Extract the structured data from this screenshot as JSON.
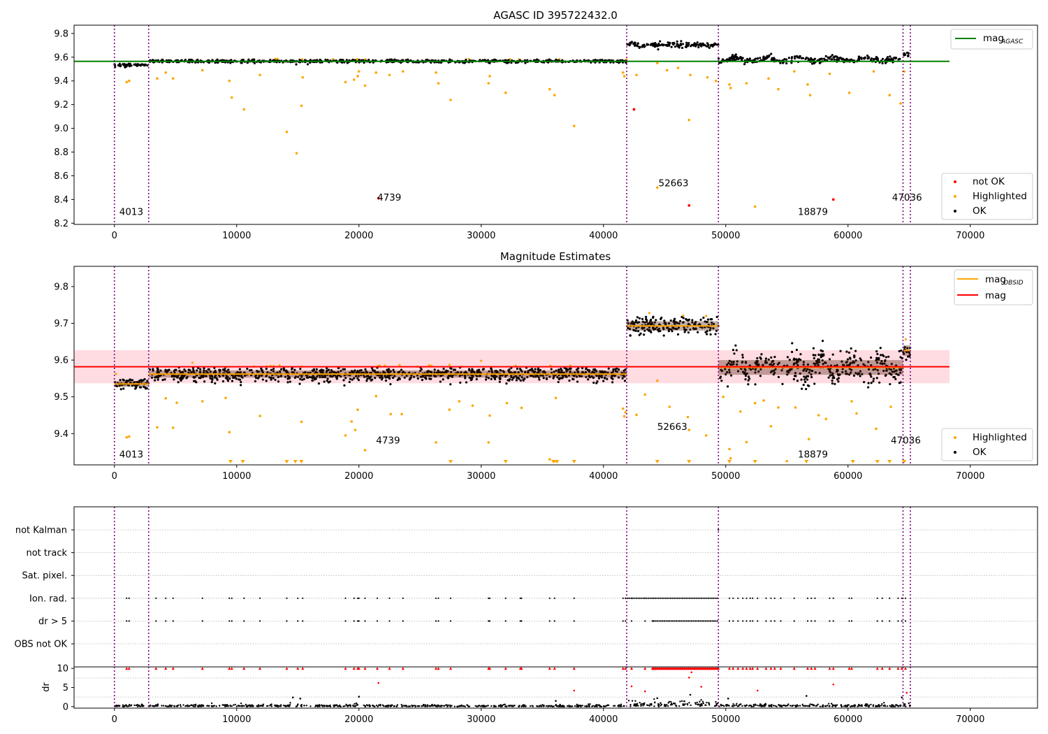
{
  "figure_title": "AGASC ID 395722432.0",
  "colors": {
    "ok": "#000000",
    "highlighted": "#ffa500",
    "not_ok": "#ff0000",
    "mag_agasc": "#008000",
    "mag_obsid": "#ffa500",
    "mag": "#ff0000",
    "mag_band": "#ffc0cb",
    "obs_line": "#800080",
    "grid": "#b0b0b0",
    "brown": "#4a1c0a"
  },
  "chart_data": [
    {
      "name": "agasc-panel",
      "type": "scatter",
      "title": "AGASC ID 395722432.0",
      "xlim": [
        -3300,
        75500
      ],
      "ylim": [
        8.19,
        9.87
      ],
      "x_ticks": [
        0,
        10000,
        20000,
        30000,
        40000,
        50000,
        60000,
        70000
      ],
      "y_ticks": [
        8.2,
        8.4,
        8.6,
        8.8,
        9.0,
        9.2,
        9.4,
        9.6,
        9.8
      ],
      "obs_boundaries": [
        0,
        2800,
        41900,
        49400,
        64500,
        65100
      ],
      "segment_means": [
        9.535,
        9.567,
        9.567,
        9.704,
        9.58,
        9.625
      ],
      "segment_spread": [
        0.012,
        0.012,
        0.012,
        0.018,
        0.022,
        0.02
      ],
      "mag_agasc": {
        "value": 9.565,
        "x_range": [
          -3300,
          68300
        ]
      },
      "highlighted_points": [
        [
          1000,
          9.39
        ],
        [
          1200,
          9.4
        ],
        [
          3500,
          9.42
        ],
        [
          4200,
          9.47
        ],
        [
          4800,
          9.42
        ],
        [
          7200,
          9.49
        ],
        [
          9400,
          9.4
        ],
        [
          9600,
          9.26
        ],
        [
          10600,
          9.16
        ],
        [
          11900,
          9.45
        ],
        [
          14100,
          8.97
        ],
        [
          14900,
          8.79
        ],
        [
          15300,
          9.19
        ],
        [
          15400,
          9.43
        ],
        [
          18900,
          9.39
        ],
        [
          19600,
          9.41
        ],
        [
          19900,
          9.44
        ],
        [
          20000,
          9.48
        ],
        [
          20500,
          9.36
        ],
        [
          21400,
          9.47
        ],
        [
          22500,
          9.45
        ],
        [
          23600,
          9.48
        ],
        [
          26300,
          9.47
        ],
        [
          26500,
          9.38
        ],
        [
          27500,
          9.24
        ],
        [
          30600,
          9.38
        ],
        [
          30700,
          9.44
        ],
        [
          32000,
          9.3
        ],
        [
          35600,
          9.33
        ],
        [
          36000,
          9.28
        ],
        [
          37600,
          9.02
        ],
        [
          41600,
          9.47
        ],
        [
          41700,
          9.44
        ],
        [
          42700,
          9.45
        ],
        [
          44400,
          9.55
        ],
        [
          44400,
          8.5
        ],
        [
          45200,
          9.49
        ],
        [
          46100,
          9.51
        ],
        [
          47000,
          9.07
        ],
        [
          47100,
          9.45
        ],
        [
          48500,
          9.43
        ],
        [
          49200,
          9.4
        ],
        [
          50300,
          9.37
        ],
        [
          50400,
          9.34
        ],
        [
          51700,
          9.38
        ],
        [
          52400,
          8.34
        ],
        [
          53500,
          9.42
        ],
        [
          54300,
          9.33
        ],
        [
          55600,
          9.48
        ],
        [
          56700,
          9.37
        ],
        [
          56900,
          9.28
        ],
        [
          58500,
          9.46
        ],
        [
          60100,
          9.3
        ],
        [
          62100,
          9.48
        ],
        [
          63400,
          9.28
        ],
        [
          64300,
          9.21
        ],
        [
          64600,
          9.48
        ]
      ],
      "not_ok_points": [
        [
          21600,
          8.41
        ],
        [
          42500,
          9.16
        ],
        [
          47000,
          8.35
        ],
        [
          58800,
          8.4
        ]
      ],
      "obsid_labels": [
        {
          "text": "4013",
          "x": 400,
          "y": 8.27
        },
        {
          "text": "4739",
          "x": 21500,
          "y": 8.39
        },
        {
          "text": "52663",
          "x": 44500,
          "y": 8.51
        },
        {
          "text": "18879",
          "x": 55900,
          "y": 8.27
        },
        {
          "text": "47036",
          "x": 63600,
          "y": 8.39
        }
      ],
      "legend": {
        "position": "top-right",
        "label": "mag",
        "subscript": "AGASC"
      },
      "legend2": {
        "position": "lower-right",
        "entries": [
          "not OK",
          "Highlighted",
          "OK"
        ]
      }
    },
    {
      "name": "estimates-panel",
      "type": "scatter",
      "title": "Magnitude Estimates",
      "xlim": [
        -3300,
        75500
      ],
      "ylim": [
        9.315,
        9.855
      ],
      "x_ticks": [
        0,
        10000,
        20000,
        30000,
        40000,
        50000,
        60000,
        70000
      ],
      "y_ticks": [
        9.4,
        9.5,
        9.6,
        9.7,
        9.8
      ],
      "obs_boundaries": [
        0,
        2800,
        41900,
        49400,
        64500,
        65100
      ],
      "segment_means": [
        9.535,
        9.562,
        9.562,
        9.693,
        9.58,
        9.626
      ],
      "segment_spread": [
        0.01,
        0.012,
        0.012,
        0.016,
        0.025,
        0.018
      ],
      "mag": {
        "value": 9.582,
        "band": [
          9.537,
          9.627
        ],
        "x_range": [
          -3300,
          68300
        ]
      },
      "highlighted_points": [
        [
          1000,
          9.39
        ],
        [
          1200,
          9.392
        ],
        [
          3500,
          9.417
        ],
        [
          4200,
          9.496
        ],
        [
          4800,
          9.416
        ],
        [
          5100,
          9.484
        ],
        [
          7200,
          9.488
        ],
        [
          9100,
          9.497
        ],
        [
          9400,
          9.404
        ],
        [
          11900,
          9.448
        ],
        [
          15300,
          9.432
        ],
        [
          18900,
          9.395
        ],
        [
          19400,
          9.433
        ],
        [
          19700,
          9.41
        ],
        [
          19900,
          9.465
        ],
        [
          20500,
          9.355
        ],
        [
          21400,
          9.502
        ],
        [
          22600,
          9.453
        ],
        [
          23500,
          9.453
        ],
        [
          26300,
          9.376
        ],
        [
          27400,
          9.465
        ],
        [
          28200,
          9.488
        ],
        [
          29300,
          9.476
        ],
        [
          30600,
          9.376
        ],
        [
          30700,
          9.449
        ],
        [
          32100,
          9.483
        ],
        [
          33300,
          9.47
        ],
        [
          35600,
          9.33
        ],
        [
          36000,
          9.325
        ],
        [
          36100,
          9.497
        ],
        [
          41600,
          9.468
        ],
        [
          41700,
          9.447
        ],
        [
          41800,
          9.458
        ],
        [
          42700,
          9.451
        ],
        [
          43400,
          9.506
        ],
        [
          44400,
          9.544
        ],
        [
          45400,
          9.473
        ],
        [
          46900,
          9.445
        ],
        [
          47000,
          9.41
        ],
        [
          48400,
          9.395
        ],
        [
          49800,
          9.5
        ],
        [
          50300,
          9.358
        ],
        [
          50400,
          9.333
        ],
        [
          51200,
          9.46
        ],
        [
          51700,
          9.377
        ],
        [
          52400,
          9.483
        ],
        [
          53100,
          9.49
        ],
        [
          53700,
          9.42
        ],
        [
          54300,
          9.471
        ],
        [
          55000,
          9.325
        ],
        [
          55700,
          9.471
        ],
        [
          56800,
          9.385
        ],
        [
          57600,
          9.45
        ],
        [
          58200,
          9.44
        ],
        [
          60300,
          9.488
        ],
        [
          60700,
          9.455
        ],
        [
          62300,
          9.413
        ],
        [
          63500,
          9.473
        ]
      ],
      "down_markers": [
        9500,
        10500,
        14100,
        14800,
        15300,
        27500,
        32000,
        35900,
        36200,
        37600,
        44400,
        47000,
        50300,
        52400,
        56600,
        60400,
        62400,
        63400,
        64600
      ],
      "obsid_labels": [
        {
          "text": "4013",
          "x": 400,
          "y": 9.335
        },
        {
          "text": "4739",
          "x": 21400,
          "y": 9.373
        },
        {
          "text": "52663",
          "x": 44400,
          "y": 9.41
        },
        {
          "text": "18879",
          "x": 55900,
          "y": 9.335
        },
        {
          "text": "47036",
          "x": 63500,
          "y": 9.373
        }
      ],
      "legend": {
        "position": "top-right",
        "entries": [
          {
            "label": "mag",
            "subscript": "OBSID"
          },
          {
            "label": "mag"
          }
        ]
      },
      "legend2": {
        "position": "lower-right",
        "entries": [
          "Highlighted",
          "OK"
        ]
      }
    },
    {
      "name": "flags-panel",
      "type": "scatter",
      "xlim": [
        -3300,
        75500
      ],
      "categories": [
        "not Kalman",
        "not track",
        "Sat. pixel.",
        "Ion. rad.",
        "dr > 5",
        "OBS not OK"
      ],
      "obs_boundaries": [
        0,
        2800,
        41900,
        49400,
        64500,
        65100
      ],
      "flagged_x": [
        1000,
        1200,
        3400,
        4200,
        4800,
        7200,
        9400,
        9600,
        10600,
        11900,
        14100,
        15000,
        15400,
        18900,
        19600,
        19900,
        20000,
        20500,
        21500,
        22500,
        23600,
        26300,
        26500,
        27500,
        30600,
        30700,
        32000,
        33200,
        33300,
        35600,
        36000,
        37600,
        41600,
        41800,
        42300,
        43400,
        44100,
        50300,
        50600,
        51000,
        51400,
        51700,
        52000,
        52200,
        52600,
        53300,
        53700,
        54000,
        54500,
        55600,
        56700,
        57000,
        57300,
        58500,
        58800,
        60100,
        60300,
        62400,
        62800,
        63400,
        64100,
        64400,
        64700
      ],
      "ion_rad_dense": [
        42000,
        49400
      ],
      "dr_dense": [
        44000,
        49400
      ],
      "not_kalman_x": [
        49400
      ]
    },
    {
      "name": "dr-panel",
      "type": "scatter",
      "ylabel": "dr",
      "xlim": [
        -3300,
        75500
      ],
      "ylim": [
        -0.4,
        10.4
      ],
      "x_ticks": [
        0,
        10000,
        20000,
        30000,
        40000,
        50000,
        60000,
        70000
      ],
      "y_ticks": [
        0,
        5,
        10
      ],
      "obs_boundaries": [
        0,
        2800,
        41900,
        49400,
        64500,
        65100
      ],
      "segment_dr": [
        0.6,
        0.5,
        0.4,
        1.3,
        0.6,
        1.0
      ],
      "capped_dense": [
        44000,
        49400
      ],
      "extra_red": [
        [
          21600,
          6.2
        ],
        [
          37600,
          4.2
        ],
        [
          42300,
          5.3
        ],
        [
          43400,
          4.0
        ],
        [
          47000,
          7.6
        ],
        [
          47200,
          9.0
        ],
        [
          48000,
          5.2
        ],
        [
          52600,
          4.2
        ],
        [
          58800,
          5.8
        ],
        [
          64800,
          3.6
        ]
      ],
      "extra_black": [
        [
          14600,
          2.4
        ],
        [
          15200,
          2.1
        ],
        [
          20000,
          2.6
        ],
        [
          36100,
          1.5
        ],
        [
          44400,
          2.2
        ],
        [
          47100,
          3.1
        ],
        [
          50200,
          2.1
        ],
        [
          56600,
          2.8
        ],
        [
          64400,
          2.4
        ]
      ]
    }
  ],
  "obs_labels_note": ""
}
